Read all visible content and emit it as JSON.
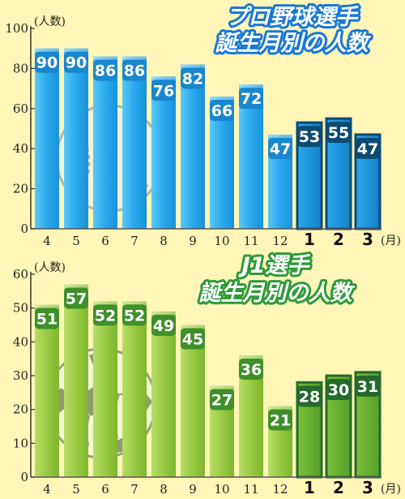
{
  "chart_data": [
    {
      "type": "bar",
      "title": [
        "プロ野球選手",
        "誕生月別の人数"
      ],
      "ylabel": "(人数)",
      "x_unit": "(月)",
      "categories": [
        "4",
        "5",
        "6",
        "7",
        "8",
        "9",
        "10",
        "11",
        "12",
        "1",
        "2",
        "3"
      ],
      "values": [
        90,
        90,
        86,
        86,
        76,
        82,
        66,
        72,
        47,
        53,
        55,
        47
      ],
      "ylim": [
        0,
        100
      ],
      "yticks": [
        "0",
        "20",
        "40",
        "60",
        "80",
        "100"
      ],
      "grid": false,
      "colors": {
        "bar": "#32b4ee",
        "bar_dark": "#0d4a72",
        "title_stroke": "#1a78d6"
      },
      "icon": "baseball-icon"
    },
    {
      "type": "bar",
      "title": [
        "J1選手",
        "誕生月別の人数"
      ],
      "ylabel": "(人数)",
      "x_unit": "(月)",
      "categories": [
        "4",
        "5",
        "6",
        "7",
        "8",
        "9",
        "10",
        "11",
        "12",
        "1",
        "2",
        "3"
      ],
      "values": [
        51,
        57,
        52,
        52,
        49,
        45,
        27,
        36,
        21,
        28,
        30,
        31
      ],
      "ylim": [
        0,
        60
      ],
      "yticks": [
        "0",
        "10",
        "20",
        "30",
        "40",
        "50",
        "60"
      ],
      "grid": false,
      "colors": {
        "bar": "#a0d04a",
        "bar_dark": "#256a2c",
        "title_stroke": "#2f9a3a"
      },
      "icon": "soccer-ball-icon"
    }
  ]
}
